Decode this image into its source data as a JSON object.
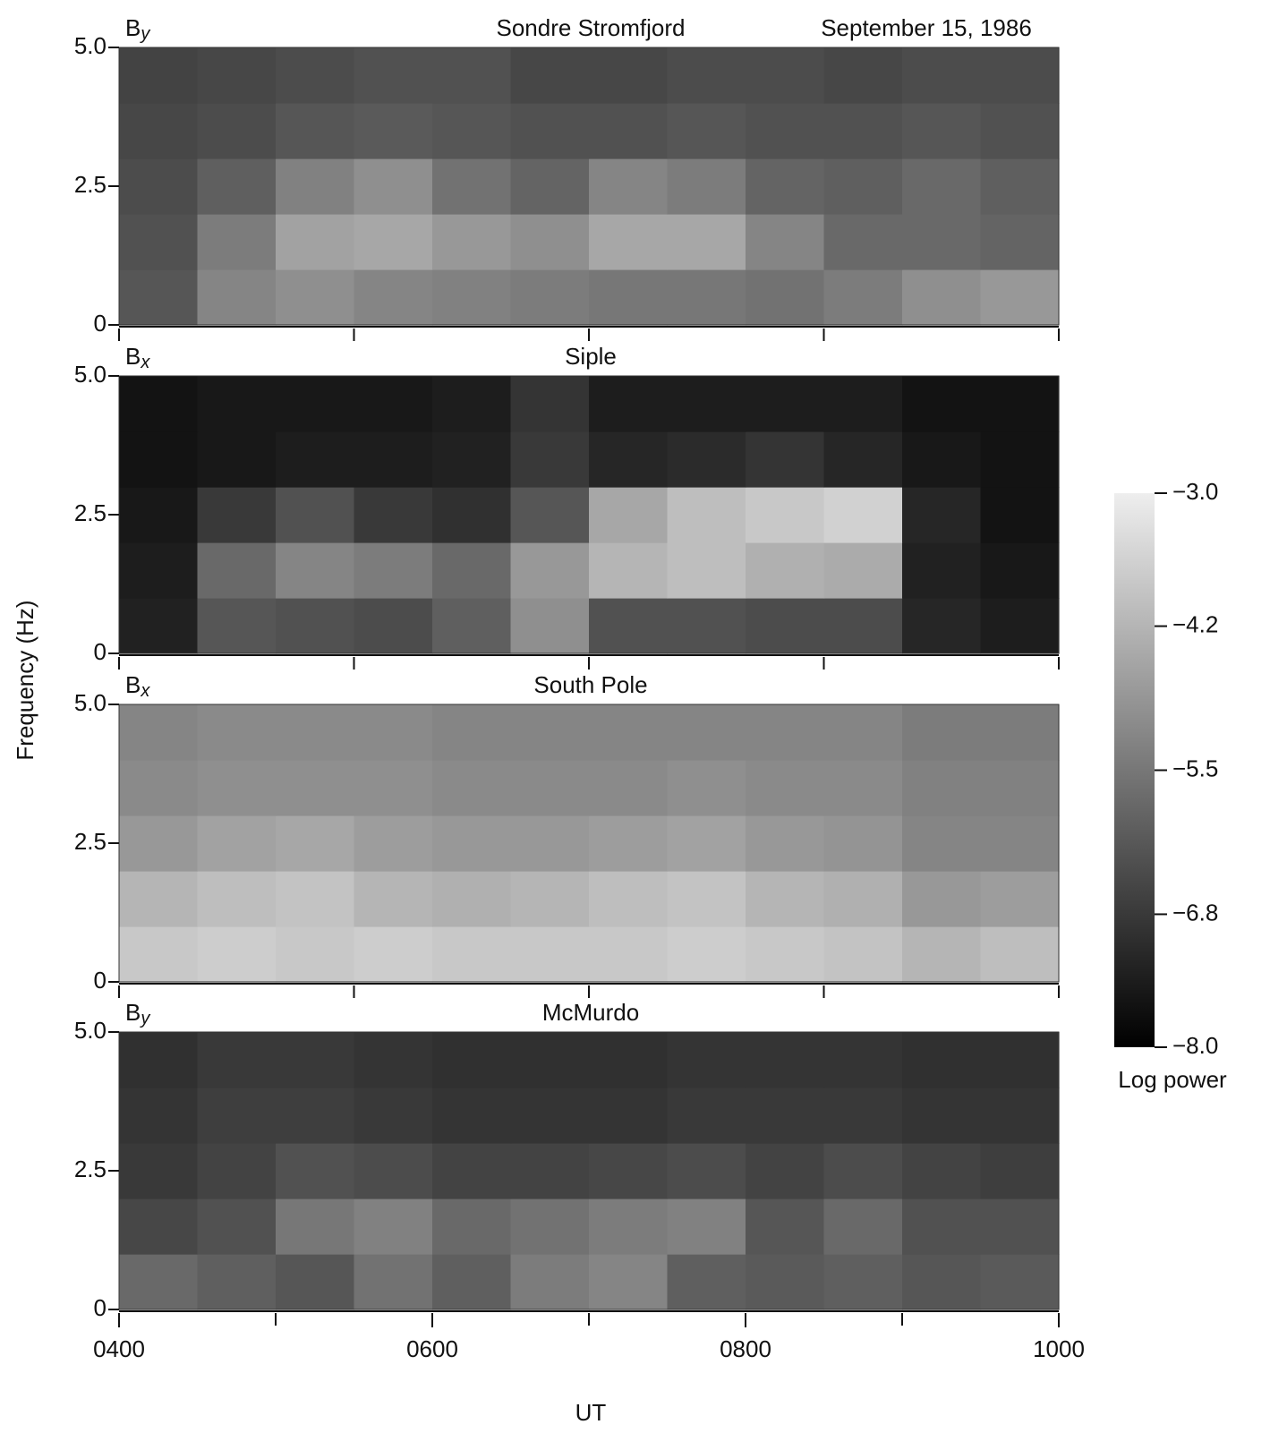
{
  "chart_data": {
    "type": "heatmap",
    "subtitle": "September 15, 1986",
    "xlabel": "UT",
    "ylabel": "Frequency (Hz)",
    "xlim": [
      4,
      10
    ],
    "xticks": [
      {
        "value": 4,
        "label": "0400"
      },
      {
        "value": 6,
        "label": "0600"
      },
      {
        "value": 8,
        "label": "0800"
      },
      {
        "value": 10,
        "label": "1000"
      }
    ],
    "xminor": [
      5,
      7,
      9
    ],
    "upper_xticks": [
      4,
      5.5,
      7,
      8.5,
      10
    ],
    "ylim": [
      0,
      5
    ],
    "yticks": [
      0,
      2.5,
      {
        "value": 5,
        "label": "5.0"
      }
    ],
    "colorbar": {
      "label": "Log power",
      "lim": [
        -8,
        -3
      ],
      "ticks": [
        {
          "value": -3,
          "label": "−3.0"
        },
        {
          "value": -4.2,
          "label": "−4.2"
        },
        {
          "value": -5.5,
          "label": "−5.5"
        },
        {
          "value": -6.8,
          "label": "−6.8"
        },
        {
          "value": -8,
          "label": "−8.0"
        }
      ]
    },
    "panels": [
      {
        "title": "Sondre Stromfjord",
        "component": {
          "base": "B",
          "sub": "y"
        },
        "values": [
          [
            -6.2,
            -5.2,
            -5.0,
            -5.2,
            -5.3,
            -5.4,
            -5.5,
            -5.5,
            -5.6,
            -5.4,
            -5.0,
            -4.8
          ],
          [
            -6.3,
            -5.4,
            -4.6,
            -4.5,
            -4.8,
            -5.0,
            -4.5,
            -4.5,
            -5.2,
            -5.8,
            -5.8,
            -5.9
          ],
          [
            -6.4,
            -6.0,
            -5.3,
            -5.0,
            -5.6,
            -5.9,
            -5.2,
            -5.4,
            -5.9,
            -6.0,
            -5.8,
            -6.0
          ],
          [
            -6.5,
            -6.4,
            -6.2,
            -6.1,
            -6.2,
            -6.3,
            -6.3,
            -6.2,
            -6.3,
            -6.3,
            -6.2,
            -6.3
          ],
          [
            -6.6,
            -6.5,
            -6.4,
            -6.3,
            -6.3,
            -6.5,
            -6.5,
            -6.4,
            -6.4,
            -6.5,
            -6.4,
            -6.4
          ]
        ]
      },
      {
        "title": "Siple",
        "component": {
          "base": "B",
          "sub": "x"
        },
        "values": [
          [
            -7.3,
            -6.2,
            -6.3,
            -6.4,
            -6.0,
            -5.0,
            -6.3,
            -6.3,
            -6.4,
            -6.4,
            -7.2,
            -7.4
          ],
          [
            -7.4,
            -5.8,
            -5.2,
            -5.4,
            -5.8,
            -4.8,
            -4.2,
            -4.0,
            -4.3,
            -4.4,
            -7.3,
            -7.5
          ],
          [
            -7.5,
            -6.8,
            -6.3,
            -6.8,
            -7.0,
            -6.2,
            -4.5,
            -4.0,
            -3.8,
            -3.6,
            -7.2,
            -7.6
          ],
          [
            -7.6,
            -7.5,
            -7.4,
            -7.4,
            -7.3,
            -6.8,
            -7.2,
            -7.1,
            -6.9,
            -7.2,
            -7.5,
            -7.6
          ],
          [
            -7.6,
            -7.5,
            -7.5,
            -7.5,
            -7.4,
            -6.9,
            -7.4,
            -7.4,
            -7.4,
            -7.4,
            -7.6,
            -7.6
          ]
        ]
      },
      {
        "title": "South Pole",
        "component": {
          "base": "B",
          "sub": "x"
        },
        "values": [
          [
            -3.8,
            -3.7,
            -3.8,
            -3.7,
            -3.8,
            -3.8,
            -3.8,
            -3.7,
            -3.8,
            -3.9,
            -4.2,
            -4.0
          ],
          [
            -4.2,
            -4.0,
            -3.9,
            -4.2,
            -4.3,
            -4.2,
            -4.0,
            -3.9,
            -4.2,
            -4.3,
            -4.8,
            -4.7
          ],
          [
            -4.8,
            -4.6,
            -4.5,
            -4.7,
            -4.8,
            -4.8,
            -4.7,
            -4.6,
            -4.8,
            -4.9,
            -5.2,
            -5.2
          ],
          [
            -5.1,
            -5.0,
            -5.0,
            -5.0,
            -5.1,
            -5.1,
            -5.1,
            -5.0,
            -5.1,
            -5.1,
            -5.3,
            -5.3
          ],
          [
            -5.2,
            -5.1,
            -5.1,
            -5.1,
            -5.2,
            -5.2,
            -5.2,
            -5.2,
            -5.2,
            -5.2,
            -5.4,
            -5.4
          ]
        ]
      },
      {
        "title": "McMurdo",
        "component": {
          "base": "B",
          "sub": "y"
        },
        "values": [
          [
            -5.8,
            -6.0,
            -6.2,
            -5.6,
            -6.0,
            -5.4,
            -5.2,
            -6.0,
            -6.1,
            -6.0,
            -6.2,
            -6.1
          ],
          [
            -6.5,
            -6.3,
            -5.5,
            -5.3,
            -5.8,
            -5.6,
            -5.4,
            -5.3,
            -6.2,
            -5.8,
            -6.3,
            -6.3
          ],
          [
            -6.8,
            -6.6,
            -6.3,
            -6.4,
            -6.6,
            -6.6,
            -6.5,
            -6.4,
            -6.6,
            -6.4,
            -6.6,
            -6.7
          ],
          [
            -6.9,
            -6.7,
            -6.7,
            -6.8,
            -6.9,
            -6.9,
            -6.9,
            -6.8,
            -6.8,
            -6.8,
            -6.9,
            -6.9
          ],
          [
            -7.0,
            -6.8,
            -6.8,
            -6.9,
            -7.0,
            -7.0,
            -7.0,
            -6.9,
            -6.9,
            -6.9,
            -7.0,
            -7.0
          ]
        ]
      }
    ]
  }
}
